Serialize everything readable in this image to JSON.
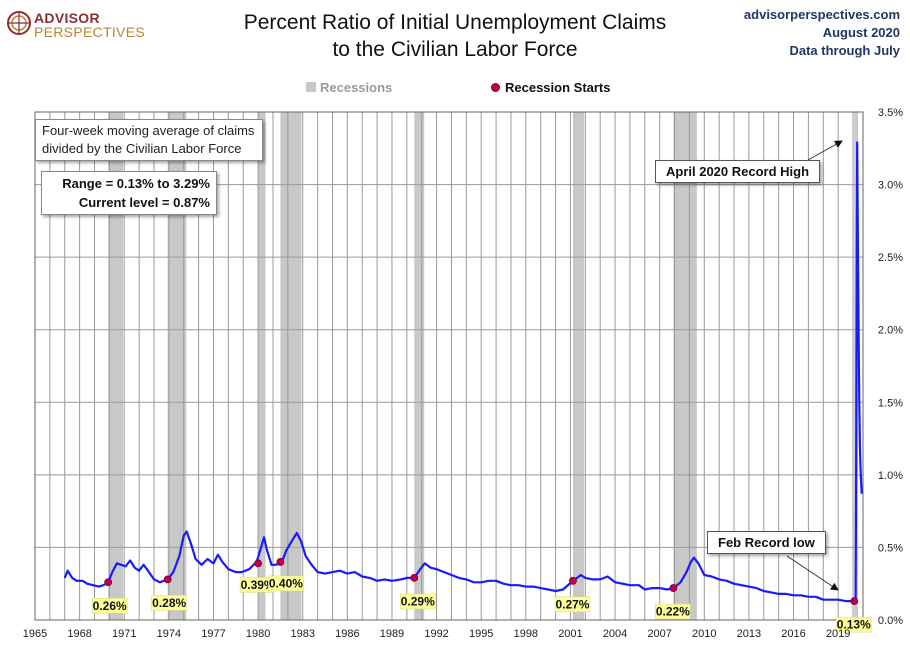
{
  "branding": {
    "logo_line1": "ADVISOR",
    "logo_line2": "PERSPECTIVES",
    "site": "advisorperspectives.com",
    "date": "August 2020",
    "data_through": "Data through July"
  },
  "chart_data": {
    "type": "line",
    "title_line1": "Percent Ratio of Initial Unemployment Claims",
    "title_line2": "to the Civilian Labor Force",
    "legend": {
      "recessions": "Recessions",
      "recession_starts": "Recession Starts"
    },
    "xlim": [
      1965,
      2020.67
    ],
    "ylim": [
      0,
      3.5
    ],
    "x_ticks": [
      1965,
      1968,
      1971,
      1974,
      1977,
      1980,
      1983,
      1986,
      1989,
      1992,
      1995,
      1998,
      2001,
      2004,
      2007,
      2010,
      2013,
      2016,
      2019
    ],
    "y_ticks": [
      {
        "value": 0.0,
        "label": "0.0%"
      },
      {
        "value": 0.5,
        "label": "0.5%"
      },
      {
        "value": 1.0,
        "label": "1.0%"
      },
      {
        "value": 1.5,
        "label": "1.5%"
      },
      {
        "value": 2.0,
        "label": "2.0%"
      },
      {
        "value": 2.5,
        "label": "2.5%"
      },
      {
        "value": 3.0,
        "label": "3.0%"
      },
      {
        "value": 3.5,
        "label": "3.5%"
      }
    ],
    "axis_position": "right",
    "grid": true,
    "line_color": "#1a1aff",
    "recession_color": "#c8c8c8",
    "recession_dot_color": "#c0004f",
    "recessions": [
      [
        1969.92,
        1970.92
      ],
      [
        1973.92,
        1975.17
      ],
      [
        1980.0,
        1980.5
      ],
      [
        1981.5,
        1982.92
      ],
      [
        1990.5,
        1991.17
      ],
      [
        2001.17,
        2001.92
      ],
      [
        2007.92,
        2009.5
      ],
      [
        2020.08,
        2020.33
      ]
    ],
    "series": [
      {
        "values": [
          [
            1967.0,
            0.29
          ],
          [
            1967.2,
            0.34
          ],
          [
            1967.5,
            0.29
          ],
          [
            1967.8,
            0.27
          ],
          [
            1968.2,
            0.27
          ],
          [
            1968.5,
            0.25
          ],
          [
            1968.9,
            0.24
          ],
          [
            1969.3,
            0.23
          ],
          [
            1969.6,
            0.24
          ],
          [
            1969.92,
            0.26
          ],
          [
            1970.2,
            0.33
          ],
          [
            1970.5,
            0.39
          ],
          [
            1970.8,
            0.38
          ],
          [
            1971.1,
            0.37
          ],
          [
            1971.4,
            0.41
          ],
          [
            1971.7,
            0.36
          ],
          [
            1972.0,
            0.34
          ],
          [
            1972.3,
            0.38
          ],
          [
            1972.6,
            0.34
          ],
          [
            1973.0,
            0.28
          ],
          [
            1973.4,
            0.26
          ],
          [
            1973.92,
            0.28
          ],
          [
            1974.3,
            0.33
          ],
          [
            1974.7,
            0.44
          ],
          [
            1975.0,
            0.58
          ],
          [
            1975.2,
            0.61
          ],
          [
            1975.5,
            0.52
          ],
          [
            1975.8,
            0.42
          ],
          [
            1976.2,
            0.38
          ],
          [
            1976.6,
            0.42
          ],
          [
            1977.0,
            0.39
          ],
          [
            1977.3,
            0.45
          ],
          [
            1977.6,
            0.4
          ],
          [
            1978.0,
            0.35
          ],
          [
            1978.5,
            0.33
          ],
          [
            1978.9,
            0.33
          ],
          [
            1979.4,
            0.35
          ],
          [
            1979.9,
            0.4
          ],
          [
            1980.2,
            0.5
          ],
          [
            1980.4,
            0.57
          ],
          [
            1980.6,
            0.48
          ],
          [
            1980.9,
            0.38
          ],
          [
            1981.2,
            0.38
          ],
          [
            1981.6,
            0.4
          ],
          [
            1981.9,
            0.48
          ],
          [
            1982.3,
            0.55
          ],
          [
            1982.6,
            0.6
          ],
          [
            1982.9,
            0.54
          ],
          [
            1983.2,
            0.44
          ],
          [
            1983.6,
            0.38
          ],
          [
            1984.0,
            0.33
          ],
          [
            1984.5,
            0.32
          ],
          [
            1985.0,
            0.33
          ],
          [
            1985.5,
            0.34
          ],
          [
            1986.0,
            0.32
          ],
          [
            1986.5,
            0.33
          ],
          [
            1987.0,
            0.3
          ],
          [
            1987.5,
            0.29
          ],
          [
            1988.0,
            0.27
          ],
          [
            1988.5,
            0.28
          ],
          [
            1989.0,
            0.27
          ],
          [
            1989.6,
            0.28
          ],
          [
            1990.0,
            0.29
          ],
          [
            1990.5,
            0.29
          ],
          [
            1990.9,
            0.35
          ],
          [
            1991.2,
            0.39
          ],
          [
            1991.6,
            0.36
          ],
          [
            1992.0,
            0.35
          ],
          [
            1992.5,
            0.33
          ],
          [
            1993.0,
            0.31
          ],
          [
            1993.5,
            0.29
          ],
          [
            1994.0,
            0.28
          ],
          [
            1994.5,
            0.26
          ],
          [
            1995.0,
            0.26
          ],
          [
            1995.5,
            0.27
          ],
          [
            1996.0,
            0.27
          ],
          [
            1996.5,
            0.25
          ],
          [
            1997.0,
            0.24
          ],
          [
            1997.5,
            0.24
          ],
          [
            1998.0,
            0.23
          ],
          [
            1998.5,
            0.23
          ],
          [
            1999.0,
            0.22
          ],
          [
            1999.5,
            0.21
          ],
          [
            2000.0,
            0.2
          ],
          [
            2000.5,
            0.21
          ],
          [
            2001.17,
            0.27
          ],
          [
            2001.7,
            0.31
          ],
          [
            2002.0,
            0.29
          ],
          [
            2002.5,
            0.28
          ],
          [
            2003.0,
            0.28
          ],
          [
            2003.5,
            0.3
          ],
          [
            2004.0,
            0.26
          ],
          [
            2004.5,
            0.25
          ],
          [
            2005.0,
            0.24
          ],
          [
            2005.6,
            0.24
          ],
          [
            2006.0,
            0.21
          ],
          [
            2006.5,
            0.22
          ],
          [
            2007.0,
            0.22
          ],
          [
            2007.5,
            0.21
          ],
          [
            2007.92,
            0.22
          ],
          [
            2008.4,
            0.26
          ],
          [
            2008.8,
            0.33
          ],
          [
            2009.1,
            0.4
          ],
          [
            2009.3,
            0.43
          ],
          [
            2009.6,
            0.39
          ],
          [
            2010.0,
            0.31
          ],
          [
            2010.5,
            0.3
          ],
          [
            2011.0,
            0.28
          ],
          [
            2011.5,
            0.27
          ],
          [
            2012.0,
            0.25
          ],
          [
            2012.5,
            0.24
          ],
          [
            2013.0,
            0.23
          ],
          [
            2013.5,
            0.22
          ],
          [
            2014.0,
            0.2
          ],
          [
            2014.5,
            0.19
          ],
          [
            2015.0,
            0.18
          ],
          [
            2015.5,
            0.18
          ],
          [
            2016.0,
            0.17
          ],
          [
            2016.5,
            0.17
          ],
          [
            2017.0,
            0.16
          ],
          [
            2017.5,
            0.16
          ],
          [
            2018.0,
            0.14
          ],
          [
            2018.5,
            0.14
          ],
          [
            2019.0,
            0.14
          ],
          [
            2019.5,
            0.13
          ],
          [
            2020.08,
            0.13
          ],
          [
            2020.17,
            0.13
          ],
          [
            2020.21,
            1.15
          ],
          [
            2020.25,
            2.6
          ],
          [
            2020.28,
            3.29
          ],
          [
            2020.33,
            2.6
          ],
          [
            2020.38,
            1.9
          ],
          [
            2020.42,
            1.5
          ],
          [
            2020.46,
            1.2
          ],
          [
            2020.5,
            1.05
          ],
          [
            2020.54,
            0.95
          ],
          [
            2020.58,
            0.87
          ]
        ]
      }
    ],
    "recession_starts": [
      {
        "x": 1969.92,
        "y": 0.26,
        "label": "0.26%"
      },
      {
        "x": 1973.92,
        "y": 0.28,
        "label": "0.28%"
      },
      {
        "x": 1980.0,
        "y": 0.39,
        "label": "0.39%"
      },
      {
        "x": 1981.5,
        "y": 0.4,
        "label": "0.40%"
      },
      {
        "x": 1990.5,
        "y": 0.29,
        "label": "0.29%"
      },
      {
        "x": 2001.17,
        "y": 0.27,
        "label": "0.27%"
      },
      {
        "x": 2007.92,
        "y": 0.22,
        "label": "0.22%"
      },
      {
        "x": 2020.08,
        "y": 0.13,
        "label": "0.13%"
      }
    ],
    "annotations": {
      "note_line1": "Four-week moving average of claims",
      "note_line2": "divided by the Civilian Labor Force",
      "range": "Range = 0.13% to 3.29%",
      "current": "Current level = 0.87%",
      "record_high": "April 2020  Record High",
      "record_low": "Feb Record low"
    }
  }
}
